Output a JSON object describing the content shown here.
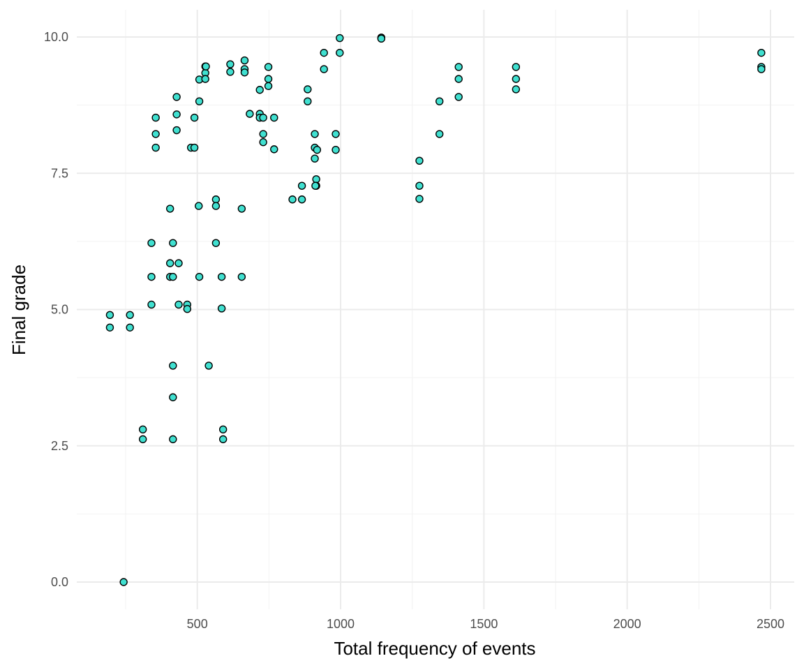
{
  "chart_data": {
    "type": "scatter",
    "title": "",
    "xlabel": "Total frequency of events",
    "ylabel": "Final grade",
    "xlim": [
      110,
      2580
    ],
    "ylim": [
      -0.5,
      10.5
    ],
    "x_ticks": [
      500,
      1000,
      1500,
      2000,
      2500
    ],
    "x_tick_labels": [
      "500",
      "1000",
      "1500",
      "2000",
      "2500"
    ],
    "x_minor_ticks": [
      250,
      750,
      1250,
      1750,
      2250
    ],
    "y_ticks": [
      0,
      2.5,
      5,
      7.5,
      10
    ],
    "y_tick_labels": [
      "0.0",
      "2.5",
      "5.0",
      "7.5",
      "10.0"
    ],
    "y_minor_ticks": [
      1.25,
      3.75,
      6.25,
      8.75
    ],
    "grid": true,
    "legend": "none",
    "point_color": "#40E0D0",
    "point_edge_color": "#000000",
    "points": [
      [
        195,
        4.9
      ],
      [
        195,
        4.67
      ],
      [
        265,
        4.9
      ],
      [
        265,
        4.67
      ],
      [
        243,
        0.0
      ],
      [
        310,
        2.8
      ],
      [
        310,
        2.62
      ],
      [
        340,
        6.22
      ],
      [
        340,
        5.6
      ],
      [
        340,
        5.09
      ],
      [
        355,
        8.52
      ],
      [
        355,
        8.22
      ],
      [
        355,
        7.97
      ],
      [
        405,
        6.85
      ],
      [
        405,
        5.85
      ],
      [
        405,
        5.6
      ],
      [
        415,
        6.22
      ],
      [
        415,
        5.6
      ],
      [
        415,
        3.97
      ],
      [
        415,
        3.39
      ],
      [
        415,
        2.62
      ],
      [
        428,
        8.9
      ],
      [
        428,
        8.58
      ],
      [
        428,
        8.29
      ],
      [
        435,
        5.85
      ],
      [
        435,
        5.09
      ],
      [
        465,
        5.09
      ],
      [
        465,
        5.01
      ],
      [
        478,
        7.97
      ],
      [
        490,
        8.52
      ],
      [
        490,
        7.97
      ],
      [
        505,
        6.9
      ],
      [
        507,
        9.22
      ],
      [
        507,
        8.82
      ],
      [
        507,
        5.6
      ],
      [
        528,
        9.46
      ],
      [
        528,
        9.34
      ],
      [
        528,
        9.23
      ],
      [
        530,
        9.46
      ],
      [
        540,
        3.97
      ],
      [
        565,
        7.02
      ],
      [
        565,
        6.9
      ],
      [
        565,
        6.22
      ],
      [
        585,
        5.6
      ],
      [
        585,
        5.02
      ],
      [
        590,
        2.8
      ],
      [
        590,
        2.62
      ],
      [
        615,
        9.5
      ],
      [
        615,
        9.36
      ],
      [
        655,
        6.85
      ],
      [
        655,
        5.6
      ],
      [
        665,
        9.57
      ],
      [
        665,
        9.41
      ],
      [
        665,
        9.35
      ],
      [
        683,
        8.59
      ],
      [
        718,
        9.03
      ],
      [
        718,
        8.59
      ],
      [
        718,
        8.52
      ],
      [
        730,
        8.52
      ],
      [
        730,
        8.22
      ],
      [
        730,
        8.07
      ],
      [
        748,
        9.45
      ],
      [
        748,
        9.23
      ],
      [
        748,
        9.1
      ],
      [
        768,
        8.52
      ],
      [
        768,
        7.94
      ],
      [
        832,
        7.02
      ],
      [
        865,
        7.27
      ],
      [
        865,
        7.02
      ],
      [
        885,
        9.04
      ],
      [
        885,
        8.82
      ],
      [
        910,
        8.22
      ],
      [
        910,
        7.97
      ],
      [
        910,
        7.77
      ],
      [
        915,
        7.39
      ],
      [
        915,
        7.27
      ],
      [
        912,
        7.27
      ],
      [
        918,
        7.93
      ],
      [
        942,
        9.71
      ],
      [
        942,
        9.41
      ],
      [
        983,
        8.22
      ],
      [
        983,
        7.93
      ],
      [
        997,
        9.98
      ],
      [
        997,
        9.71
      ],
      [
        1142,
        9.99
      ],
      [
        1142,
        9.97
      ],
      [
        1275,
        7.73
      ],
      [
        1275,
        7.27
      ],
      [
        1275,
        7.03
      ],
      [
        1345,
        8.82
      ],
      [
        1345,
        8.22
      ],
      [
        1412,
        9.45
      ],
      [
        1412,
        9.23
      ],
      [
        1412,
        8.9
      ],
      [
        1612,
        9.45
      ],
      [
        1612,
        9.23
      ],
      [
        1612,
        9.04
      ],
      [
        2468,
        9.71
      ],
      [
        2468,
        9.45
      ],
      [
        2468,
        9.41
      ]
    ]
  }
}
